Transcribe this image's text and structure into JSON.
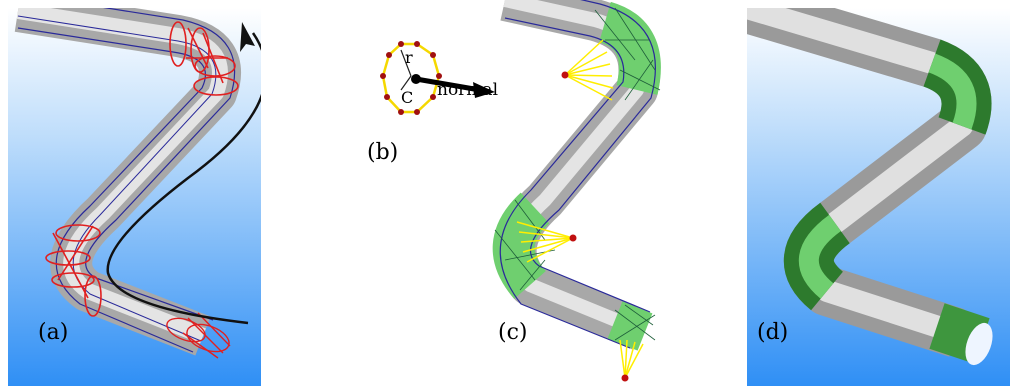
{
  "panels": {
    "a": {
      "label": "(a)"
    },
    "b": {
      "label": "(b)",
      "r_label": "r",
      "c_label": "C",
      "normal_label": "normal"
    },
    "c": {
      "label": "(c)"
    },
    "d": {
      "label": "(d)"
    }
  },
  "colors": {
    "sky_top": "#ffffff",
    "sky_bottom": "#2f8ff5",
    "tube_gray": "#c8c8c8",
    "mesh_blue": "#2a2a9a",
    "ring_red": "#e02020",
    "joint_green": "#6fcf6f",
    "fan_yellow": "#ffee00",
    "point_red": "#c01010"
  }
}
